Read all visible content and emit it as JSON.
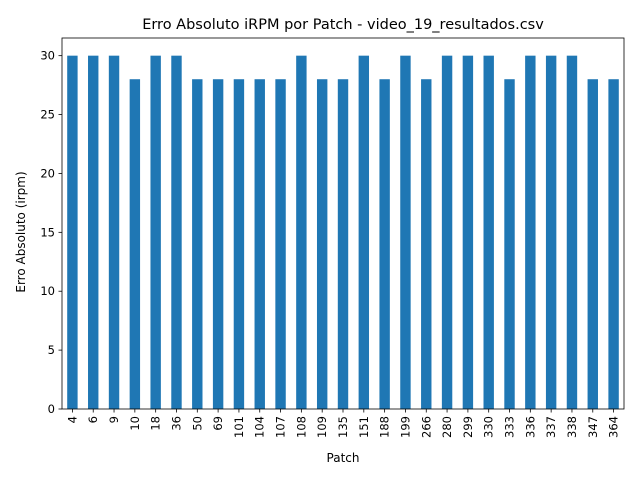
{
  "chart_data": {
    "type": "bar",
    "title": "Erro Absoluto iRPM por Patch - video_19_resultados.csv",
    "xlabel": "Patch",
    "ylabel": "Erro Absoluto (irpm)",
    "categories": [
      "4",
      "6",
      "9",
      "10",
      "18",
      "36",
      "50",
      "69",
      "101",
      "104",
      "107",
      "108",
      "109",
      "135",
      "151",
      "188",
      "199",
      "266",
      "280",
      "299",
      "330",
      "333",
      "336",
      "337",
      "338",
      "347",
      "364"
    ],
    "values": [
      30,
      30,
      30,
      28,
      30,
      30,
      28,
      28,
      28,
      28,
      28,
      30,
      28,
      28,
      30,
      28,
      30,
      28,
      30,
      30,
      30,
      28,
      30,
      30,
      30,
      28,
      28
    ],
    "ylim": [
      0,
      31.5
    ],
    "yticks": [
      0,
      5,
      10,
      15,
      20,
      25,
      30
    ],
    "bar_color": "#1f77b4",
    "grid": false,
    "legend": "none"
  }
}
